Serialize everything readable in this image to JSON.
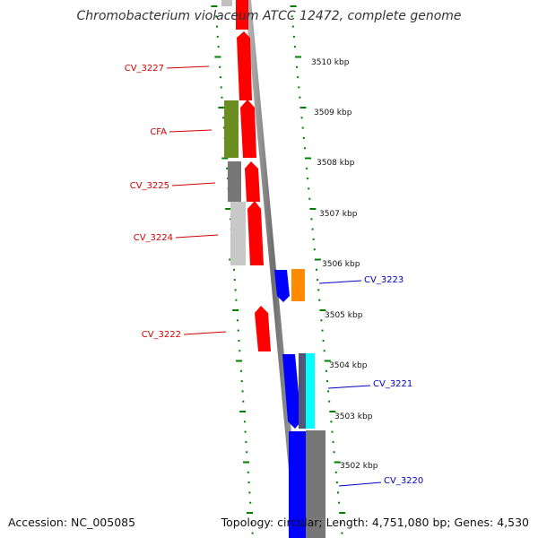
{
  "title": "Chromobacterium violaceum ATCC 12472, complete genome",
  "accession": "Accession: NC_005085",
  "summary": "Topology: circular; Length: 4,751,080 bp; Genes: 4,530",
  "colors": {
    "forward_label": "#d40000",
    "reverse_label": "#0000c0",
    "tick": "#007f00",
    "cds_red": "#ff0000",
    "cds_blue": "#0000ff",
    "cds_olive": "#6b8e23",
    "cds_orange": "#ff8c00",
    "cds_cyan": "#00ffff",
    "cds_gray": "#777777",
    "cds_lightgray": "#c8c8c8",
    "backbone": "#888888"
  },
  "kbp_labels": [
    "3510 kbp",
    "3509 kbp",
    "3508 kbp",
    "3507 kbp",
    "3506 kbp",
    "3505 kbp",
    "3504 kbp",
    "3503 kbp",
    "3502 kbp"
  ],
  "forward_labels": [
    "CV_3227",
    "CFA",
    "CV_3225",
    "CV_3224",
    "CV_3222"
  ],
  "reverse_labels": [
    "CV_3223",
    "CV_3221",
    "CV_3220"
  ]
}
